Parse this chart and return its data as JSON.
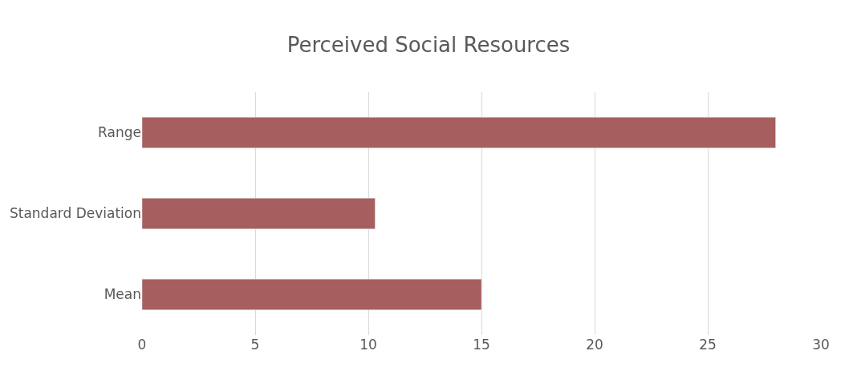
{
  "chart_data": {
    "type": "bar",
    "orientation": "horizontal",
    "title": "Perceived Social Resources",
    "categories": [
      "Range",
      "Standard Deviation",
      "Mean"
    ],
    "values": [
      28,
      10.3,
      15
    ],
    "color": "#a65f5e",
    "xlim": [
      0,
      30
    ],
    "xticks": [
      0,
      5,
      10,
      15,
      20,
      25,
      30
    ],
    "grid": "x"
  }
}
